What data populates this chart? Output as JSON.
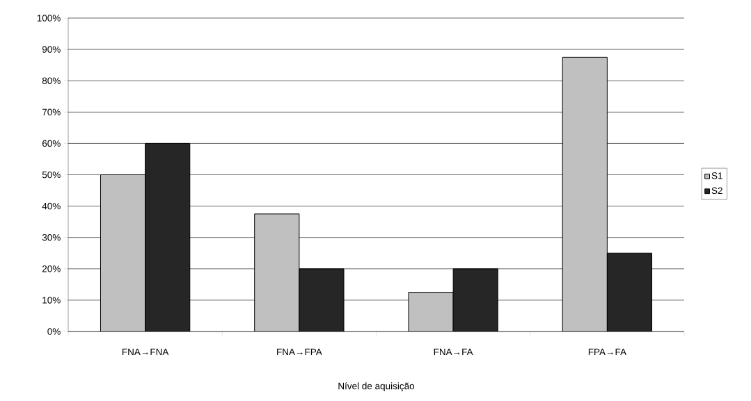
{
  "chart_data": {
    "type": "bar",
    "xlabel": "Nível de aquisição",
    "categories": [
      "FNA→FNA",
      "FNA→FPA",
      "FNA→FA",
      "FPA→FA"
    ],
    "series": [
      {
        "name": "S1",
        "color": "#c0c0c0",
        "values": [
          50,
          37.5,
          12.5,
          87.5
        ]
      },
      {
        "name": "S2",
        "color": "#262626",
        "values": [
          60,
          20,
          20,
          25
        ]
      }
    ],
    "ylim": [
      0,
      100
    ],
    "yticks": [
      {
        "value": 0,
        "label": "0%"
      },
      {
        "value": 10,
        "label": "10%"
      },
      {
        "value": 20,
        "label": "20%"
      },
      {
        "value": 30,
        "label": "30%"
      },
      {
        "value": 40,
        "label": "40%"
      },
      {
        "value": 50,
        "label": "50%"
      },
      {
        "value": 60,
        "label": "60%"
      },
      {
        "value": 70,
        "label": "70%"
      },
      {
        "value": 80,
        "label": "80%"
      },
      {
        "value": 90,
        "label": "90%"
      },
      {
        "value": 100,
        "label": "100%"
      }
    ],
    "grid": "y",
    "legend": "right"
  }
}
